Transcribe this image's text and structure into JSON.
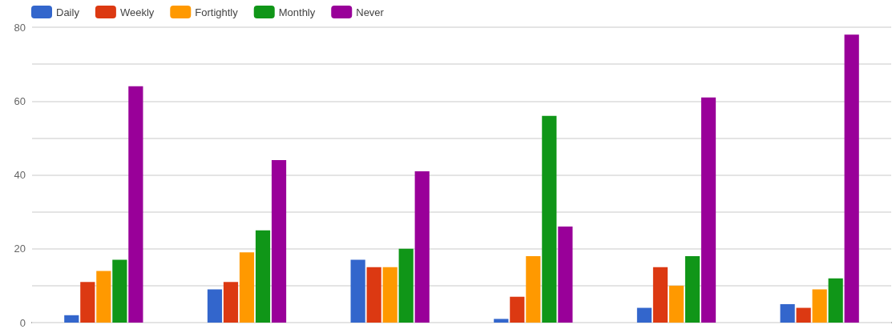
{
  "chart_data": {
    "type": "bar",
    "categories": [
      null,
      null,
      null,
      null,
      null,
      null
    ],
    "series": [
      {
        "name": "Daily",
        "color": "#3366cc",
        "values": [
          2,
          9,
          17,
          1,
          4,
          5
        ]
      },
      {
        "name": "Weekly",
        "color": "#dc3912",
        "values": [
          11,
          11,
          15,
          7,
          15,
          4
        ]
      },
      {
        "name": "Fortightly",
        "color": "#ff9900",
        "values": [
          14,
          19,
          15,
          18,
          10,
          9
        ]
      },
      {
        "name": "Monthly",
        "color": "#109618",
        "values": [
          17,
          25,
          20,
          56,
          18,
          12
        ]
      },
      {
        "name": "Never",
        "color": "#990099",
        "values": [
          64,
          44,
          41,
          26,
          61,
          78
        ]
      }
    ],
    "ylim": [
      0,
      80
    ],
    "yticks": [
      0,
      {
        "value": 10,
        "label": null
      },
      20,
      {
        "value": 30,
        "label": null
      },
      40,
      {
        "value": 50,
        "label": null
      },
      60,
      {
        "value": 70,
        "label": null
      },
      80
    ],
    "grid": "y",
    "legend": "top left"
  }
}
